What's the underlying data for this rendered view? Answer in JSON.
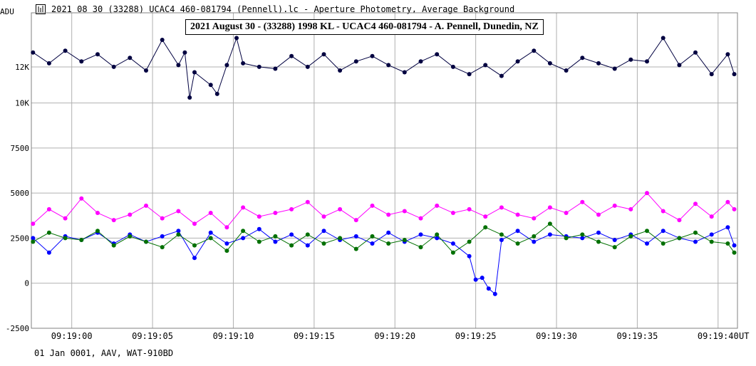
{
  "window": {
    "title": "2021 08 30 (33288) UCAC4 460-081794 (Pennell).lc - Aperture Photometry, Average Background"
  },
  "footer": {
    "note": "01 Jan 0001, AAV, WAT-910BD"
  },
  "chart_data": {
    "type": "line",
    "title": "2021 August 30 - (33288) 1998 KL - UCAC4 460-081794 - A. Pennell, Dunedin, NZ",
    "ylabel": "ADU",
    "xlabel": "UT",
    "ylim": [
      -2500,
      15000
    ],
    "xlim_seconds": [
      57.5,
      101.2
    ],
    "y_ticks": [
      -2500,
      0,
      2500,
      5000,
      7500,
      10000,
      12000
    ],
    "y_tick_labels": [
      "-2500",
      "0",
      "2500",
      "5000",
      "7500",
      "10K",
      "12K"
    ],
    "x_ticks": [
      "09:19:00",
      "09:19:05",
      "09:19:10",
      "09:19:15",
      "09:19:20",
      "09:19:25",
      "09:19:30",
      "09:19:35",
      "09:19:40"
    ],
    "grid": true,
    "colors": {
      "navy": "#000040",
      "magenta": "#ff00ff",
      "blue": "#0000ff",
      "green": "#007000"
    },
    "series": [
      {
        "color": "#000040",
        "x": [
          "09:18:57.6",
          "09:18:58.6",
          "09:18:59.6",
          "09:19:00.6",
          "09:19:01.6",
          "09:19:02.6",
          "09:19:03.6",
          "09:19:04.6",
          "09:19:05.6",
          "09:19:06.6",
          "09:19:07.0",
          "09:19:07.3",
          "09:19:07.6",
          "09:19:08.6",
          "09:19:09.0",
          "09:19:09.6",
          "09:19:10.2",
          "09:19:10.6",
          "09:19:11.6",
          "09:19:12.6",
          "09:19:13.6",
          "09:19:14.6",
          "09:19:15.6",
          "09:19:16.6",
          "09:19:17.6",
          "09:19:18.6",
          "09:19:19.6",
          "09:19:20.6",
          "09:19:21.6",
          "09:19:22.6",
          "09:19:23.6",
          "09:19:24.6",
          "09:19:25.6",
          "09:19:26.6",
          "09:19:27.6",
          "09:19:28.6",
          "09:19:29.6",
          "09:19:30.6",
          "09:19:31.6",
          "09:19:32.6",
          "09:19:33.6",
          "09:19:34.6",
          "09:19:35.6",
          "09:19:36.6",
          "09:19:37.6",
          "09:19:38.6",
          "09:19:39.6",
          "09:19:40.6",
          "09:19:41.0"
        ],
        "y": [
          12800,
          12200,
          12900,
          12300,
          12700,
          12000,
          12500,
          11800,
          13500,
          12100,
          12800,
          10300,
          11700,
          11000,
          10500,
          12100,
          13600,
          12200,
          12000,
          11900,
          12600,
          12000,
          12700,
          11800,
          12300,
          12600,
          12100,
          11700,
          12300,
          12700,
          12000,
          11600,
          12100,
          11500,
          12300,
          12900,
          12200,
          11800,
          12500,
          12200,
          11900,
          12400,
          12300,
          13600,
          12100,
          12800,
          11600,
          12700,
          11600
        ]
      },
      {
        "color": "#ff00ff",
        "x": [
          "09:18:57.6",
          "09:18:58.6",
          "09:18:59.6",
          "09:19:00.6",
          "09:19:01.6",
          "09:19:02.6",
          "09:19:03.6",
          "09:19:04.6",
          "09:19:05.6",
          "09:19:06.6",
          "09:19:07.6",
          "09:19:08.6",
          "09:19:09.6",
          "09:19:10.6",
          "09:19:11.6",
          "09:19:12.6",
          "09:19:13.6",
          "09:19:14.6",
          "09:19:15.6",
          "09:19:16.6",
          "09:19:17.6",
          "09:19:18.6",
          "09:19:19.6",
          "09:19:20.6",
          "09:19:21.6",
          "09:19:22.6",
          "09:19:23.6",
          "09:19:24.6",
          "09:19:25.6",
          "09:19:26.6",
          "09:19:27.6",
          "09:19:28.6",
          "09:19:29.6",
          "09:19:30.6",
          "09:19:31.6",
          "09:19:32.6",
          "09:19:33.6",
          "09:19:34.6",
          "09:19:35.6",
          "09:19:36.6",
          "09:19:37.6",
          "09:19:38.6",
          "09:19:39.6",
          "09:19:40.6",
          "09:19:41.0"
        ],
        "y": [
          3300,
          4100,
          3600,
          4700,
          3900,
          3500,
          3800,
          4300,
          3600,
          4000,
          3300,
          3900,
          3100,
          4200,
          3700,
          3900,
          4100,
          4500,
          3700,
          4100,
          3500,
          4300,
          3800,
          4000,
          3600,
          4300,
          3900,
          4100,
          3700,
          4200,
          3800,
          3600,
          4200,
          3900,
          4500,
          3800,
          4300,
          4100,
          5000,
          4000,
          3500,
          4400,
          3700,
          4500,
          4100
        ]
      },
      {
        "color": "#0000ff",
        "x": [
          "09:18:57.6",
          "09:18:58.6",
          "09:18:59.6",
          "09:19:00.6",
          "09:19:01.6",
          "09:19:02.6",
          "09:19:03.6",
          "09:19:04.6",
          "09:19:05.6",
          "09:19:06.6",
          "09:19:07.6",
          "09:19:08.6",
          "09:19:09.6",
          "09:19:10.6",
          "09:19:11.6",
          "09:19:12.6",
          "09:19:13.6",
          "09:19:14.6",
          "09:19:15.6",
          "09:19:16.6",
          "09:19:17.6",
          "09:19:18.6",
          "09:19:19.6",
          "09:19:20.6",
          "09:19:21.6",
          "09:19:22.6",
          "09:19:23.6",
          "09:19:24.6",
          "09:19:25.0",
          "09:19:25.4",
          "09:19:25.8",
          "09:19:26.2",
          "09:19:26.6",
          "09:19:27.6",
          "09:19:28.6",
          "09:19:29.6",
          "09:19:30.6",
          "09:19:31.6",
          "09:19:32.6",
          "09:19:33.6",
          "09:19:34.6",
          "09:19:35.6",
          "09:19:36.6",
          "09:19:37.6",
          "09:19:38.6",
          "09:19:39.6",
          "09:19:40.6",
          "09:19:41.0"
        ],
        "y": [
          2500,
          1700,
          2600,
          2400,
          2800,
          2200,
          2700,
          2300,
          2600,
          2900,
          1400,
          2800,
          2200,
          2500,
          3000,
          2300,
          2700,
          2100,
          2900,
          2400,
          2600,
          2200,
          2800,
          2300,
          2700,
          2500,
          2200,
          1500,
          200,
          300,
          -300,
          -600,
          2400,
          2900,
          2300,
          2700,
          2600,
          2500,
          2800,
          2400,
          2700,
          2200,
          2900,
          2500,
          2300,
          2700,
          3100,
          2100
        ]
      },
      {
        "color": "#007000",
        "x": [
          "09:18:57.6",
          "09:18:58.6",
          "09:18:59.6",
          "09:19:00.6",
          "09:19:01.6",
          "09:19:02.6",
          "09:19:03.6",
          "09:19:04.6",
          "09:19:05.6",
          "09:19:06.6",
          "09:19:07.6",
          "09:19:08.6",
          "09:19:09.6",
          "09:19:10.6",
          "09:19:11.6",
          "09:19:12.6",
          "09:19:13.6",
          "09:19:14.6",
          "09:19:15.6",
          "09:19:16.6",
          "09:19:17.6",
          "09:19:18.6",
          "09:19:19.6",
          "09:19:20.6",
          "09:19:21.6",
          "09:19:22.6",
          "09:19:23.6",
          "09:19:24.6",
          "09:19:25.6",
          "09:19:26.6",
          "09:19:27.6",
          "09:19:28.6",
          "09:19:29.6",
          "09:19:30.6",
          "09:19:31.6",
          "09:19:32.6",
          "09:19:33.6",
          "09:19:34.6",
          "09:19:35.6",
          "09:19:36.6",
          "09:19:37.6",
          "09:19:38.6",
          "09:19:39.6",
          "09:19:40.6",
          "09:19:41.0"
        ],
        "y": [
          2300,
          2800,
          2500,
          2400,
          2900,
          2100,
          2600,
          2300,
          2000,
          2700,
          2100,
          2500,
          1800,
          2900,
          2300,
          2600,
          2100,
          2700,
          2200,
          2500,
          1900,
          2600,
          2200,
          2400,
          2000,
          2700,
          1700,
          2300,
          3100,
          2700,
          2200,
          2600,
          3300,
          2500,
          2700,
          2300,
          2000,
          2600,
          2900,
          2200,
          2500,
          2800,
          2300,
          2200,
          1700
        ]
      }
    ]
  }
}
